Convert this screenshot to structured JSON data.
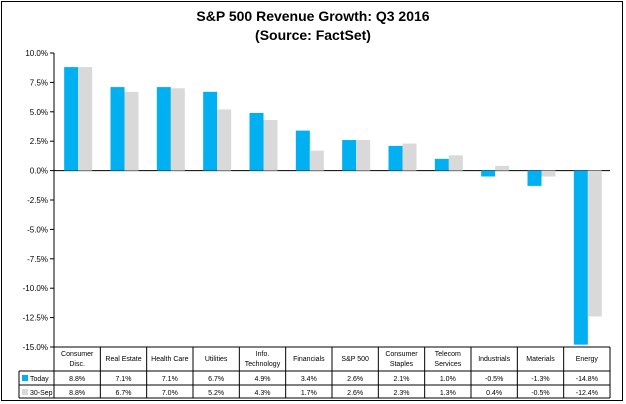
{
  "chart_data": {
    "type": "bar",
    "title": "S&P 500 Revenue Growth: Q3 2016",
    "subtitle": "(Source: FactSet)",
    "xlabel": "",
    "ylabel": "",
    "ylim": [
      -15,
      10
    ],
    "yticks": [
      10,
      7.5,
      5,
      2.5,
      0,
      -2.5,
      -5,
      -7.5,
      -10,
      -12.5,
      -15
    ],
    "ytick_labels": [
      "10.0%",
      "7.5%",
      "5.0%",
      "2.5%",
      "0.0%",
      "-2.5%",
      "-5.0%",
      "-7.5%",
      "-10.0%",
      "-12.5%",
      "-15.0%"
    ],
    "grid": false,
    "categories": [
      [
        "Consumer",
        "Disc."
      ],
      [
        "Real Estate"
      ],
      [
        "Health Care"
      ],
      [
        "Utilities"
      ],
      [
        "Info.",
        "Technology"
      ],
      [
        "Financials"
      ],
      [
        "S&P 500"
      ],
      [
        "Consumer",
        "Staples"
      ],
      [
        "Telecom",
        "Services"
      ],
      [
        "Industrials"
      ],
      [
        "Materials"
      ],
      [
        "Energy"
      ]
    ],
    "series": [
      {
        "name": "Today",
        "color": "#00b0f0",
        "values": [
          8.8,
          7.1,
          7.1,
          6.7,
          4.9,
          3.4,
          2.6,
          2.1,
          1.0,
          -0.5,
          -1.3,
          -14.8
        ],
        "labels": [
          "8.8%",
          "7.1%",
          "7.1%",
          "6.7%",
          "4.9%",
          "3.4%",
          "2.6%",
          "2.1%",
          "1.0%",
          "-0.5%",
          "-1.3%",
          "-14.8%"
        ]
      },
      {
        "name": "30-Sep",
        "color": "#d9d9d9",
        "values": [
          8.8,
          6.7,
          7.0,
          5.2,
          4.3,
          1.7,
          2.6,
          2.3,
          1.3,
          0.4,
          -0.5,
          -12.4
        ],
        "labels": [
          "8.8%",
          "6.7%",
          "7.0%",
          "5.2%",
          "4.3%",
          "1.7%",
          "2.6%",
          "2.3%",
          "1.3%",
          "0.4%",
          "-0.5%",
          "-12.4%"
        ]
      }
    ]
  }
}
